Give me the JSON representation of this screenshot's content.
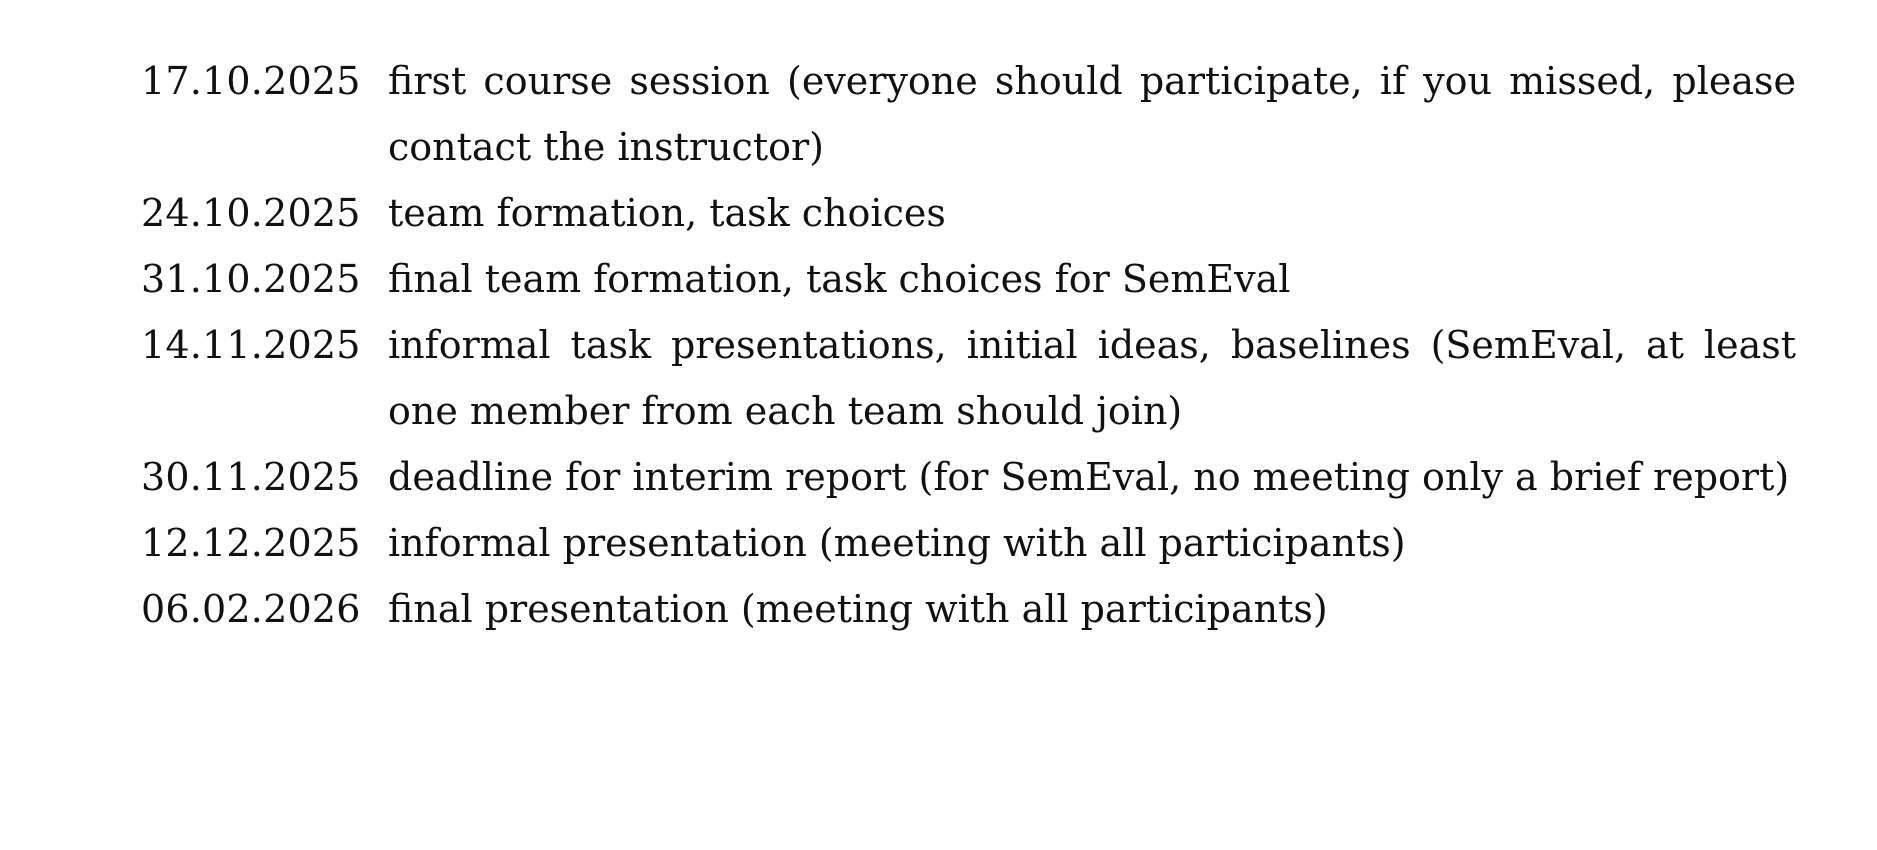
{
  "schedule": {
    "entries": [
      {
        "date": "17.10.2025",
        "text": "first course session (everyone should participate, if you missed, please contact the instructor)"
      },
      {
        "date": "24.10.2025",
        "text": "team formation, task choices"
      },
      {
        "date": "31.10.2025",
        "text": "final team formation, task choices for SemEval"
      },
      {
        "date": "14.11.2025",
        "text": "informal task presentations, initial ideas, baselines (SemEval, at least one member from each team should join)"
      },
      {
        "date": "30.11.2025",
        "text": "deadline for interim report (for SemEval, no meeting only a brief report)"
      },
      {
        "date": "12.12.2025",
        "text": "informal presentation (meeting with all participants)"
      },
      {
        "date": "06.02.2026",
        "text": "final presentation (meeting with all participants)"
      }
    ]
  }
}
